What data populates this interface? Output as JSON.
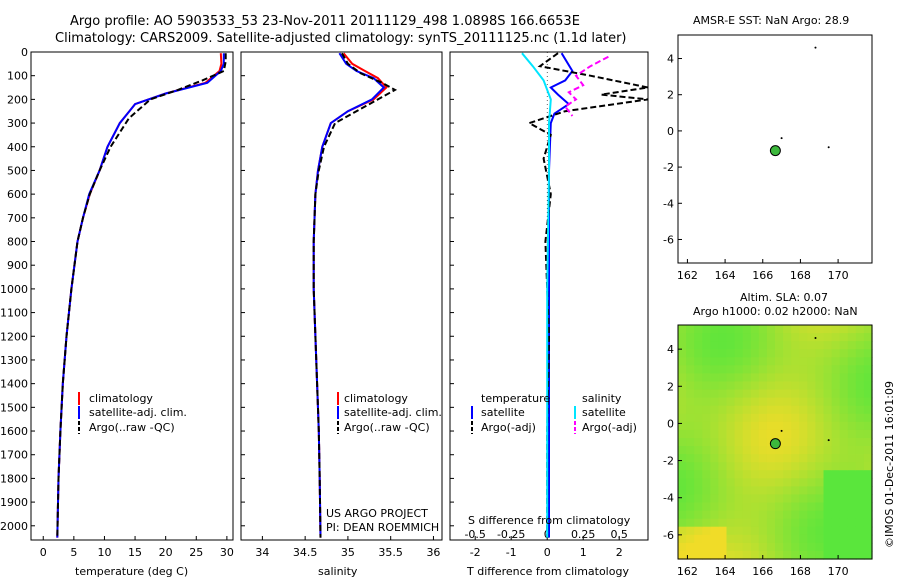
{
  "title_line1": "Argo profile: AO 5903533_53 23-Nov-2011 20111129_498 1.0898S 166.6653E",
  "title_line2": "Climatology: CARS2009. Satellite-adjusted climatology: synTS_20111125.nc (1.1d later)",
  "footer_imos": "©IMOS 01-Dec-2011 16:01:09",
  "colors": {
    "climatology": "#ff0000",
    "satellite": "#0000ff",
    "argo": "#000000",
    "sat_salinity": "#00e5ff",
    "argo_salinity": "#ff00ff"
  },
  "chart_data": [
    {
      "type": "line",
      "id": "temperature",
      "xlabel": "temperature (deg C)",
      "ylabel": "",
      "xlim": [
        -2,
        31
      ],
      "ylim": [
        2060,
        0
      ],
      "xticks": [
        0,
        5,
        10,
        15,
        20,
        25,
        30
      ],
      "xtick_labels": [
        "0",
        "5",
        "10",
        "15",
        "20",
        "25",
        "30"
      ],
      "yticks": [
        0,
        100,
        200,
        300,
        400,
        500,
        600,
        700,
        800,
        900,
        1000,
        1100,
        1200,
        1300,
        1400,
        1500,
        1600,
        1700,
        1800,
        1900,
        2000
      ],
      "ytick_labels": [
        "0",
        "100",
        "200",
        "300",
        "400",
        "500",
        "600",
        "700",
        "800",
        "900",
        "1000",
        "1100",
        "1200",
        "1300",
        "1400",
        "1500",
        "1600",
        "1700",
        "1800",
        "1900",
        "2000"
      ],
      "legend": [
        "climatology",
        "satellite-adj. clim.",
        "Argo(..raw -QC)"
      ],
      "series": [
        {
          "name": "climatology",
          "color": "#ff0000",
          "x": [
            29.0,
            29.1,
            28.8,
            26.5,
            20,
            15,
            12.5,
            10.5,
            9.2,
            7.6,
            6.5,
            5.6,
            4.6,
            3.8,
            3.2,
            2.8,
            2.5,
            2.3
          ],
          "y": [
            5,
            50,
            80,
            130,
            175,
            220,
            300,
            400,
            500,
            600,
            700,
            800,
            1000,
            1200,
            1400,
            1600,
            1800,
            2050
          ]
        },
        {
          "name": "satellite-adj. clim.",
          "color": "#0000ff",
          "x": [
            29.5,
            29.5,
            29.0,
            26.8,
            20,
            15,
            12.5,
            10.5,
            9.2,
            7.5,
            6.5,
            5.6,
            4.6,
            3.8,
            3.2,
            2.8,
            2.5,
            2.3
          ],
          "y": [
            5,
            50,
            80,
            130,
            175,
            220,
            300,
            400,
            500,
            600,
            700,
            800,
            1000,
            1200,
            1400,
            1600,
            1800,
            2050
          ]
        },
        {
          "name": "Argo(..raw -QC)",
          "color": "#000000",
          "dashed": true,
          "x": [
            29.8,
            29.8,
            29.5,
            26,
            22,
            17.5,
            14,
            11,
            9.2,
            7.6,
            6.5,
            5.6,
            4.6,
            3.8,
            3.2,
            2.8,
            2.5,
            2.3
          ],
          "y": [
            5,
            40,
            80,
            120,
            160,
            200,
            280,
            400,
            500,
            600,
            700,
            800,
            1000,
            1200,
            1400,
            1600,
            1800,
            2050
          ]
        }
      ]
    },
    {
      "type": "line",
      "id": "salinity",
      "xlabel": "salinity",
      "xlim": [
        33.75,
        36.1
      ],
      "ylim": [
        2060,
        0
      ],
      "xticks": [
        34,
        34.5,
        35,
        35.5,
        36
      ],
      "xtick_labels": [
        "34",
        "34.5",
        "35",
        "35.5",
        "36"
      ],
      "legend": [
        "climatology",
        "satellite-adj. clim.",
        "Argo(..raw -QC)"
      ],
      "annotation": [
        "US ARGO PROJECT",
        "PI: DEAN ROEMMICH"
      ],
      "series": [
        {
          "name": "climatology",
          "color": "#ff0000",
          "x": [
            34.95,
            35.05,
            35.2,
            35.35,
            35.45,
            35.3,
            35.0,
            34.8,
            34.7,
            34.65,
            34.62,
            34.6,
            34.6,
            34.62,
            34.64,
            34.66,
            34.67,
            34.68
          ],
          "y": [
            5,
            50,
            80,
            110,
            150,
            200,
            250,
            300,
            400,
            500,
            600,
            800,
            1000,
            1200,
            1400,
            1600,
            1800,
            2050
          ]
        },
        {
          "name": "satellite-adj. clim.",
          "color": "#0000ff",
          "x": [
            34.9,
            34.98,
            35.1,
            35.3,
            35.42,
            35.28,
            35.0,
            34.8,
            34.7,
            34.65,
            34.62,
            34.6,
            34.6,
            34.62,
            34.64,
            34.66,
            34.67,
            34.68
          ],
          "y": [
            5,
            50,
            80,
            110,
            150,
            200,
            250,
            300,
            400,
            500,
            600,
            800,
            1000,
            1200,
            1400,
            1600,
            1800,
            2050
          ]
        },
        {
          "name": "Argo(..raw -QC)",
          "color": "#000000",
          "dashed": true,
          "x": [
            34.93,
            35.0,
            35.15,
            35.4,
            35.55,
            35.35,
            35.05,
            34.85,
            34.72,
            34.66,
            34.62,
            34.6,
            34.6,
            34.62,
            34.64,
            34.66,
            34.67,
            34.68
          ],
          "y": [
            5,
            50,
            90,
            130,
            160,
            200,
            260,
            300,
            400,
            500,
            600,
            800,
            1000,
            1200,
            1400,
            1600,
            1800,
            2050
          ]
        }
      ]
    },
    {
      "type": "line",
      "id": "difference",
      "xlabel": "T difference from climatology",
      "xlabel_top": "S difference from climatology",
      "xlim": [
        -2.7,
        2.8
      ],
      "ylim": [
        2060,
        0
      ],
      "xticks": [
        -2,
        -1,
        0,
        1,
        2
      ],
      "xtick_labels": [
        "-2",
        "-1",
        "0",
        "1",
        "2"
      ],
      "xticks_top": [
        -0.5,
        -0.25,
        0,
        0.25,
        0.5
      ],
      "xtick_labels_top": [
        "-0.5",
        "-0.25",
        "0",
        "0.25",
        "0.5"
      ],
      "legend_left": [
        "temperature",
        "satellite",
        "Argo(-adj)"
      ],
      "legend_right": [
        "salinity",
        "satellite",
        "Argo(-adj)"
      ],
      "series": [
        {
          "name": "T satellite",
          "color": "#0000ff",
          "x": [
            0.4,
            0.7,
            0.5,
            0.1,
            0.3,
            0.6,
            0.2,
            0.1,
            0.05,
            0.05
          ],
          "y": [
            5,
            80,
            120,
            150,
            180,
            220,
            260,
            300,
            500,
            2050
          ]
        },
        {
          "name": "T Argo(-adj)",
          "color": "#000000",
          "dashed": true,
          "x": [
            0.3,
            -0.2,
            1.2,
            2.8,
            1.5,
            2.8,
            0.5,
            -0.5,
            0.1,
            -0.1,
            0.1,
            -0.05,
            0.05,
            0,
            0
          ],
          "y": [
            5,
            60,
            100,
            150,
            180,
            200,
            250,
            300,
            350,
            450,
            600,
            800,
            1200,
            1600,
            2050
          ]
        },
        {
          "name": "S satellite",
          "color": "#00e5ff",
          "x": [
            -0.7,
            -0.4,
            -0.1,
            0.1,
            0.05,
            0.05,
            0.0,
            0.0
          ],
          "y": [
            5,
            60,
            120,
            200,
            300,
            500,
            1000,
            2050
          ]
        },
        {
          "name": "S Argo(-adj)",
          "color": "#ff00ff",
          "dashed": true,
          "x": [
            1.7,
            1.2,
            0.8,
            1.0,
            0.6,
            0.8,
            0.5,
            0.7
          ],
          "y": [
            20,
            60,
            100,
            140,
            170,
            200,
            230,
            270
          ]
        }
      ]
    },
    {
      "type": "scatter",
      "id": "sst_map",
      "title": "AMSR-E SST: NaN Argo: 28.9",
      "xlim": [
        161.5,
        171.8
      ],
      "ylim": [
        -7.3,
        5.3
      ],
      "xticks": [
        162,
        164,
        166,
        168,
        170
      ],
      "xtick_labels": [
        "162",
        "164",
        "166",
        "168",
        "170"
      ],
      "yticks": [
        4,
        2,
        0,
        -2,
        -4,
        -6
      ],
      "ytick_labels": [
        "4",
        "2",
        "0",
        "-2",
        "-4",
        "-6"
      ],
      "points": [
        {
          "x": 166.67,
          "y": -1.09
        }
      ]
    },
    {
      "type": "heatmap",
      "id": "sla_map",
      "title_line1": "Altim. SLA: 0.07",
      "title_line2": "Argo h1000: 0.02 h2000: NaN",
      "xlim": [
        161.5,
        171.8
      ],
      "ylim": [
        -7.3,
        5.3
      ],
      "xticks": [
        162,
        164,
        166,
        168,
        170
      ],
      "xtick_labels": [
        "162",
        "164",
        "166",
        "168",
        "170"
      ],
      "yticks": [
        4,
        2,
        0,
        -2,
        -4,
        -6
      ],
      "ytick_labels": [
        "4",
        "2",
        "0",
        "-2",
        "-4",
        "-6"
      ],
      "points": [
        {
          "x": 166.67,
          "y": -1.09
        }
      ]
    }
  ]
}
